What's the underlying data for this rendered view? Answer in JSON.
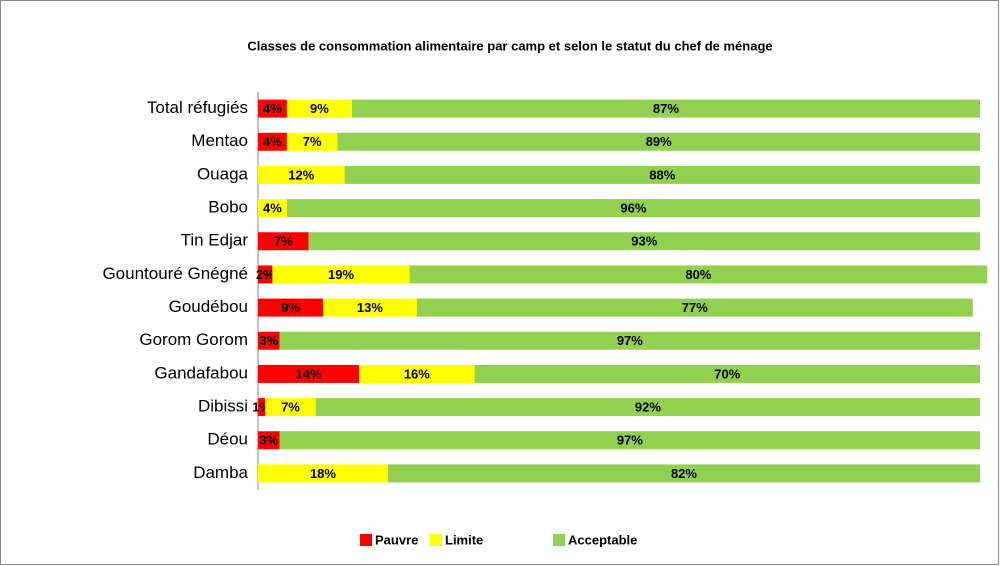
{
  "chart_data": {
    "type": "stacked_bar_horizontal",
    "title": "Classes de consommation alimentaire par camp et selon le statut du chef de ménage",
    "categories": [
      "Total réfugiés",
      "Mentao",
      "Ouaga",
      "Bobo",
      "Tin Edjar",
      "Gountouré Gnégné",
      "Goudébou",
      "Gorom Gorom",
      "Gandafabou",
      "Dibissi",
      "Déou",
      "Damba"
    ],
    "xlim": [
      0,
      100
    ],
    "legend": "bottom",
    "series": [
      {
        "name": "Pauvre",
        "color": "#ff0000",
        "values": [
          4,
          4,
          null,
          null,
          7,
          2,
          9,
          3,
          14,
          1,
          3,
          null
        ],
        "value_labels": [
          "4%",
          "4%",
          null,
          null,
          "7%",
          "2%",
          "9%",
          "3%",
          "14%",
          "1%",
          "3%",
          null
        ]
      },
      {
        "name": "Limite",
        "color": "#ffff00",
        "values": [
          9,
          7,
          12,
          4,
          null,
          19,
          13,
          null,
          16,
          7,
          null,
          18
        ],
        "value_labels": [
          "9%",
          "7%",
          "12%",
          "4%",
          null,
          "19%",
          "13%",
          null,
          "16%",
          "7%",
          null,
          "18%"
        ]
      },
      {
        "name": "Acceptable",
        "color": "#92d050",
        "values": [
          87,
          89,
          88,
          96,
          93,
          80,
          77,
          97,
          70,
          92,
          97,
          82
        ],
        "value_labels": [
          "87%",
          "89%",
          "88%",
          "96%",
          "93%",
          "80%",
          "77%",
          "97%",
          "70%",
          "92%",
          "97%",
          "82%"
        ]
      }
    ]
  }
}
